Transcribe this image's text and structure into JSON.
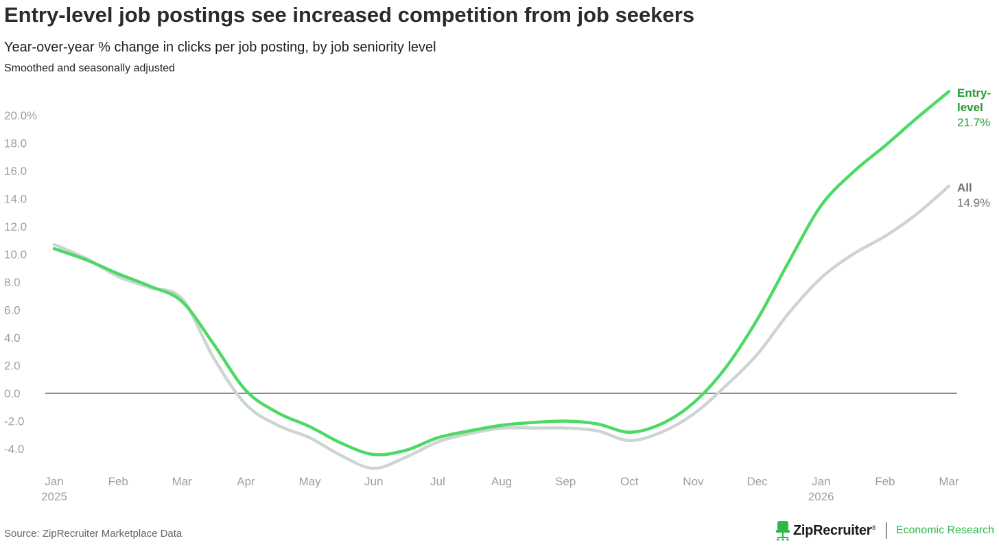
{
  "header": {
    "title": "Entry-level job postings see increased competition from job seekers",
    "subtitle": "Year-over-year % change in clicks per job posting, by job seniority level",
    "note": "Smoothed and seasonally adjusted"
  },
  "footer": {
    "source": "Source: ZipRecruiter Marketplace Data",
    "brand": "ZipRecruiter",
    "brand_mark": "®",
    "unit": "Economic Research"
  },
  "colors": {
    "entry_level": "#4cd964",
    "entry_label": "#1f9a2f",
    "all": "#cdd5d2",
    "all_label": "#6b726f",
    "axis_text": "#9aa09d",
    "zero_line": "#1a1a1a"
  },
  "icons": {
    "brand_logo": "chair-icon"
  },
  "chart_data": {
    "type": "line",
    "title": "Entry-level job postings see increased competition from job seekers",
    "subtitle": "Year-over-year % change in clicks per job posting, by job seniority level",
    "xlabel": "",
    "ylabel": "",
    "ylim": [
      -5.6,
      21.7
    ],
    "grid": false,
    "y_ticks": [
      {
        "value": 20,
        "label": "20.0%"
      },
      {
        "value": 18,
        "label": "18.0"
      },
      {
        "value": 16,
        "label": "16.0"
      },
      {
        "value": 14,
        "label": "14.0"
      },
      {
        "value": 12,
        "label": "12.0"
      },
      {
        "value": 10,
        "label": "10.0"
      },
      {
        "value": 8,
        "label": "8.0"
      },
      {
        "value": 6,
        "label": "6.0"
      },
      {
        "value": 4,
        "label": "4.0"
      },
      {
        "value": 2,
        "label": "2.0"
      },
      {
        "value": 0,
        "label": "0.0"
      },
      {
        "value": -2,
        "label": "-2.0"
      },
      {
        "value": -4,
        "label": "-4.0"
      }
    ],
    "x_ticks": [
      {
        "index": 0,
        "label": "Jan",
        "sublabel": "2025"
      },
      {
        "index": 1,
        "label": "Feb",
        "sublabel": ""
      },
      {
        "index": 2,
        "label": "Mar",
        "sublabel": ""
      },
      {
        "index": 3,
        "label": "Apr",
        "sublabel": ""
      },
      {
        "index": 4,
        "label": "May",
        "sublabel": ""
      },
      {
        "index": 5,
        "label": "Jun",
        "sublabel": ""
      },
      {
        "index": 6,
        "label": "Jul",
        "sublabel": ""
      },
      {
        "index": 7,
        "label": "Aug",
        "sublabel": ""
      },
      {
        "index": 8,
        "label": "Sep",
        "sublabel": ""
      },
      {
        "index": 9,
        "label": "Oct",
        "sublabel": ""
      },
      {
        "index": 10,
        "label": "Nov",
        "sublabel": ""
      },
      {
        "index": 11,
        "label": "Dec",
        "sublabel": ""
      },
      {
        "index": 12,
        "label": "Jan",
        "sublabel": "2026"
      },
      {
        "index": 13,
        "label": "Feb",
        "sublabel": ""
      },
      {
        "index": 14,
        "label": "Mar",
        "sublabel": ""
      }
    ],
    "x_range": [
      0,
      14.15
    ],
    "series": [
      {
        "name": "All",
        "end_label": "14.9%",
        "points": [
          [
            0,
            10.7
          ],
          [
            0.5,
            9.7
          ],
          [
            1,
            8.4
          ],
          [
            1.5,
            7.6
          ],
          [
            2,
            6.8
          ],
          [
            2.5,
            2.5
          ],
          [
            3,
            -0.8
          ],
          [
            3.5,
            -2.3
          ],
          [
            4,
            -3.2
          ],
          [
            4.5,
            -4.5
          ],
          [
            5,
            -5.4
          ],
          [
            5.5,
            -4.6
          ],
          [
            6,
            -3.5
          ],
          [
            6.5,
            -2.9
          ],
          [
            7,
            -2.5
          ],
          [
            7.5,
            -2.5
          ],
          [
            8,
            -2.5
          ],
          [
            8.5,
            -2.7
          ],
          [
            9,
            -3.4
          ],
          [
            9.5,
            -2.8
          ],
          [
            10,
            -1.5
          ],
          [
            10.5,
            0.5
          ],
          [
            11,
            2.8
          ],
          [
            11.5,
            5.8
          ],
          [
            12,
            8.3
          ],
          [
            12.5,
            10.0
          ],
          [
            13,
            11.3
          ],
          [
            13.5,
            12.9
          ],
          [
            14,
            14.9
          ]
        ]
      },
      {
        "name": "Entry-level",
        "end_label": "21.7%",
        "points": [
          [
            0,
            10.4
          ],
          [
            0.5,
            9.6
          ],
          [
            1,
            8.6
          ],
          [
            1.5,
            7.7
          ],
          [
            2,
            6.6
          ],
          [
            2.5,
            3.5
          ],
          [
            3,
            0.2
          ],
          [
            3.5,
            -1.4
          ],
          [
            4,
            -2.4
          ],
          [
            4.5,
            -3.6
          ],
          [
            5,
            -4.4
          ],
          [
            5.5,
            -4.1
          ],
          [
            6,
            -3.2
          ],
          [
            6.5,
            -2.7
          ],
          [
            7,
            -2.3
          ],
          [
            7.5,
            -2.1
          ],
          [
            8,
            -2.0
          ],
          [
            8.5,
            -2.2
          ],
          [
            9,
            -2.8
          ],
          [
            9.5,
            -2.2
          ],
          [
            10,
            -0.7
          ],
          [
            10.5,
            1.8
          ],
          [
            11,
            5.3
          ],
          [
            11.5,
            9.5
          ],
          [
            12,
            13.5
          ],
          [
            12.5,
            15.9
          ],
          [
            13,
            17.8
          ],
          [
            13.5,
            19.8
          ],
          [
            14,
            21.7
          ]
        ]
      }
    ]
  }
}
